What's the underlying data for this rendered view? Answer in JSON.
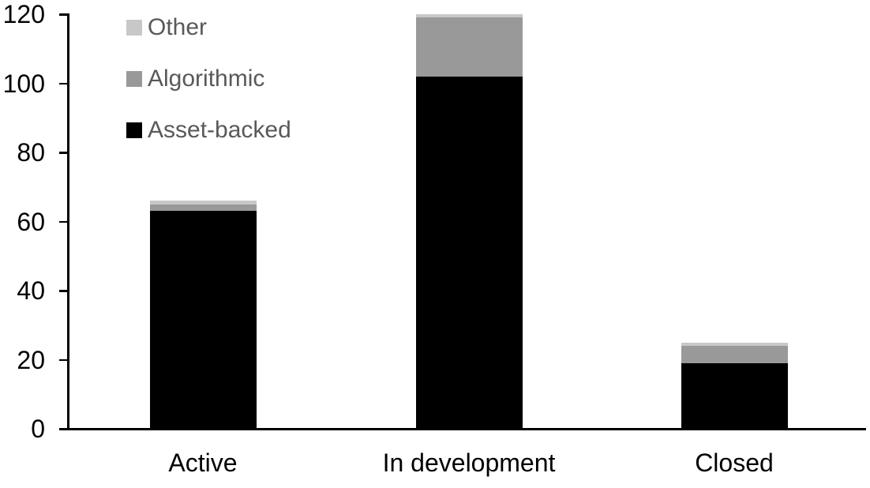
{
  "chart_data": {
    "type": "bar",
    "stacked": true,
    "title": "",
    "xlabel": "",
    "ylabel": "",
    "categories": [
      "Active",
      "In development",
      "Closed"
    ],
    "series": [
      {
        "name": "Asset-backed",
        "color": "#000000",
        "values": [
          63,
          102,
          19
        ]
      },
      {
        "name": "Algorithmic",
        "color": "#999999",
        "values": [
          2,
          17,
          5
        ]
      },
      {
        "name": "Other",
        "color": "#c8c8c8",
        "values": [
          1,
          1,
          1
        ]
      }
    ],
    "totals": [
      66,
      120,
      25
    ],
    "yticks": [
      0,
      20,
      40,
      60,
      80,
      100,
      120
    ],
    "ylim": [
      0,
      120
    ],
    "grid": false,
    "legend_position": "top-left",
    "legend_order_top_to_bottom": [
      "Other",
      "Algorithmic",
      "Asset-backed"
    ],
    "axis_color": "#000000",
    "tick_label_color": "#000000",
    "legend_text_color": "#595959"
  }
}
